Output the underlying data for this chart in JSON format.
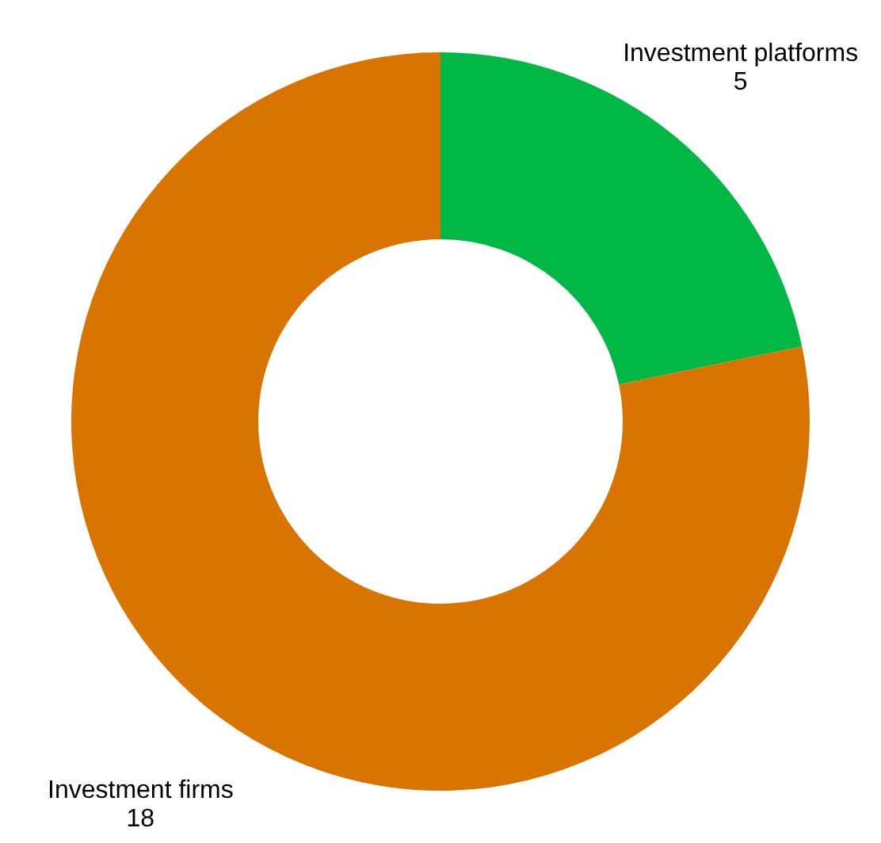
{
  "chart_data": {
    "type": "donut",
    "categories": [
      "Investment platforms",
      "Investment firms"
    ],
    "values": [
      5,
      18
    ],
    "colors": [
      "#00b843",
      "#d97400"
    ],
    "data_labels": true
  }
}
